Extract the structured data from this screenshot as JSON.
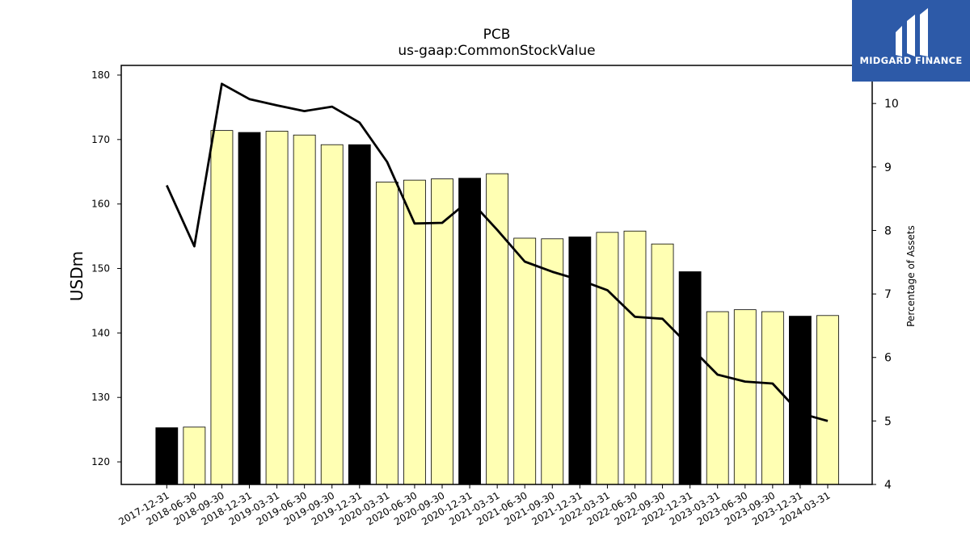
{
  "chart_data": {
    "type": "bar",
    "title": "PCB",
    "subtitle": "us-gaap:CommonStockValue",
    "ylabel": "USDm",
    "y2label": "Percentage of Assets",
    "ylim": [
      116.5,
      181.5
    ],
    "y2lim": [
      4,
      10.6
    ],
    "yticks": [
      120,
      130,
      140,
      150,
      160,
      170,
      180
    ],
    "y2ticks": [
      4,
      5,
      6,
      7,
      8,
      9,
      10
    ],
    "categories": [
      "2017-12-31",
      "2018-06-30",
      "2018-09-30",
      "2018-12-31",
      "2019-03-31",
      "2019-06-30",
      "2019-09-30",
      "2019-12-31",
      "2020-03-31",
      "2020-06-30",
      "2020-09-30",
      "2020-12-31",
      "2021-03-31",
      "2021-06-30",
      "2021-09-30",
      "2021-12-31",
      "2022-03-31",
      "2022-06-30",
      "2022-09-30",
      "2022-12-31",
      "2023-03-31",
      "2023-06-30",
      "2023-09-30",
      "2023-12-31",
      "2024-03-31"
    ],
    "values": [
      125.3,
      125.4,
      171.4,
      171.1,
      171.3,
      170.7,
      169.2,
      169.2,
      163.4,
      163.7,
      163.9,
      164.0,
      164.7,
      154.7,
      154.6,
      154.9,
      155.6,
      155.8,
      153.8,
      149.5,
      143.3,
      143.6,
      143.3,
      142.6,
      142.7
    ],
    "highlight": [
      true,
      false,
      false,
      true,
      false,
      false,
      false,
      true,
      false,
      false,
      false,
      true,
      false,
      false,
      false,
      true,
      false,
      false,
      false,
      true,
      false,
      false,
      false,
      true,
      false
    ],
    "series": [
      {
        "values": [
          8.71,
          7.75,
          10.31,
          10.07,
          9.97,
          9.88,
          9.95,
          9.7,
          9.08,
          8.11,
          8.12,
          8.48,
          8.01,
          7.51,
          7.35,
          7.22,
          7.06,
          6.64,
          6.61,
          6.17,
          5.73,
          5.62,
          5.59,
          5.12,
          5.0
        ]
      }
    ],
    "colors": {
      "bar": "#ffffb3",
      "highlight_bar": "#000000",
      "line": "#000000"
    },
    "grid": false
  },
  "logo": {
    "brand": "MIDGARD FINANCE"
  }
}
